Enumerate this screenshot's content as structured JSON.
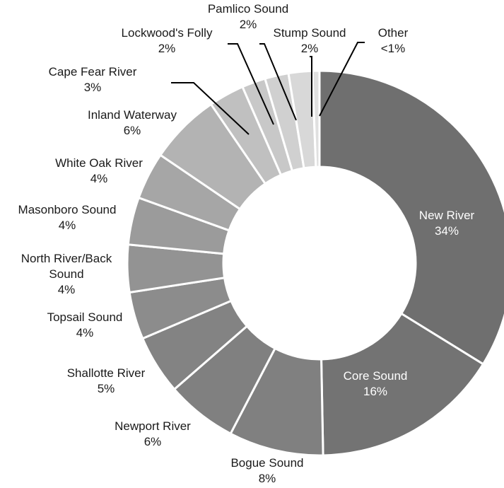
{
  "chart_data": {
    "type": "pie",
    "variant": "donut",
    "title": "",
    "slices": [
      {
        "label": "New River",
        "value": 34,
        "value_label": "34%",
        "color": "#6f6f6f"
      },
      {
        "label": "Core Sound",
        "value": 16,
        "value_label": "16%",
        "color": "#737373"
      },
      {
        "label": "Bogue Sound",
        "value": 8,
        "value_label": "8%",
        "color": "#808080"
      },
      {
        "label": "Newport River",
        "value": 6,
        "value_label": "6%",
        "color": "#808080"
      },
      {
        "label": "Shallotte River",
        "value": 5,
        "value_label": "5%",
        "color": "#838383"
      },
      {
        "label": "Topsail Sound",
        "value": 4,
        "value_label": "4%",
        "color": "#8c8c8c"
      },
      {
        "label": "North River/Back Sound",
        "value": 4,
        "value_label": "4%",
        "color": "#939393"
      },
      {
        "label": "Masonboro Sound",
        "value": 4,
        "value_label": "4%",
        "color": "#9b9b9b"
      },
      {
        "label": "White Oak River",
        "value": 4,
        "value_label": "4%",
        "color": "#a6a6a6"
      },
      {
        "label": "Inland Waterway",
        "value": 6,
        "value_label": "6%",
        "color": "#b3b3b3"
      },
      {
        "label": "Cape Fear River",
        "value": 3,
        "value_label": "3%",
        "color": "#c0c0c0"
      },
      {
        "label": "Lockwood's Folly",
        "value": 2,
        "value_label": "2%",
        "color": "#c8c8c8"
      },
      {
        "label": "Pamlico Sound",
        "value": 2,
        "value_label": "2%",
        "color": "#d0d0d0"
      },
      {
        "label": "Stump Sound",
        "value": 2,
        "value_label": "2%",
        "color": "#d8d8d8"
      },
      {
        "label": "Other",
        "value": 0.6,
        "value_label": "<1%",
        "color": "#e0e0e0"
      }
    ]
  }
}
